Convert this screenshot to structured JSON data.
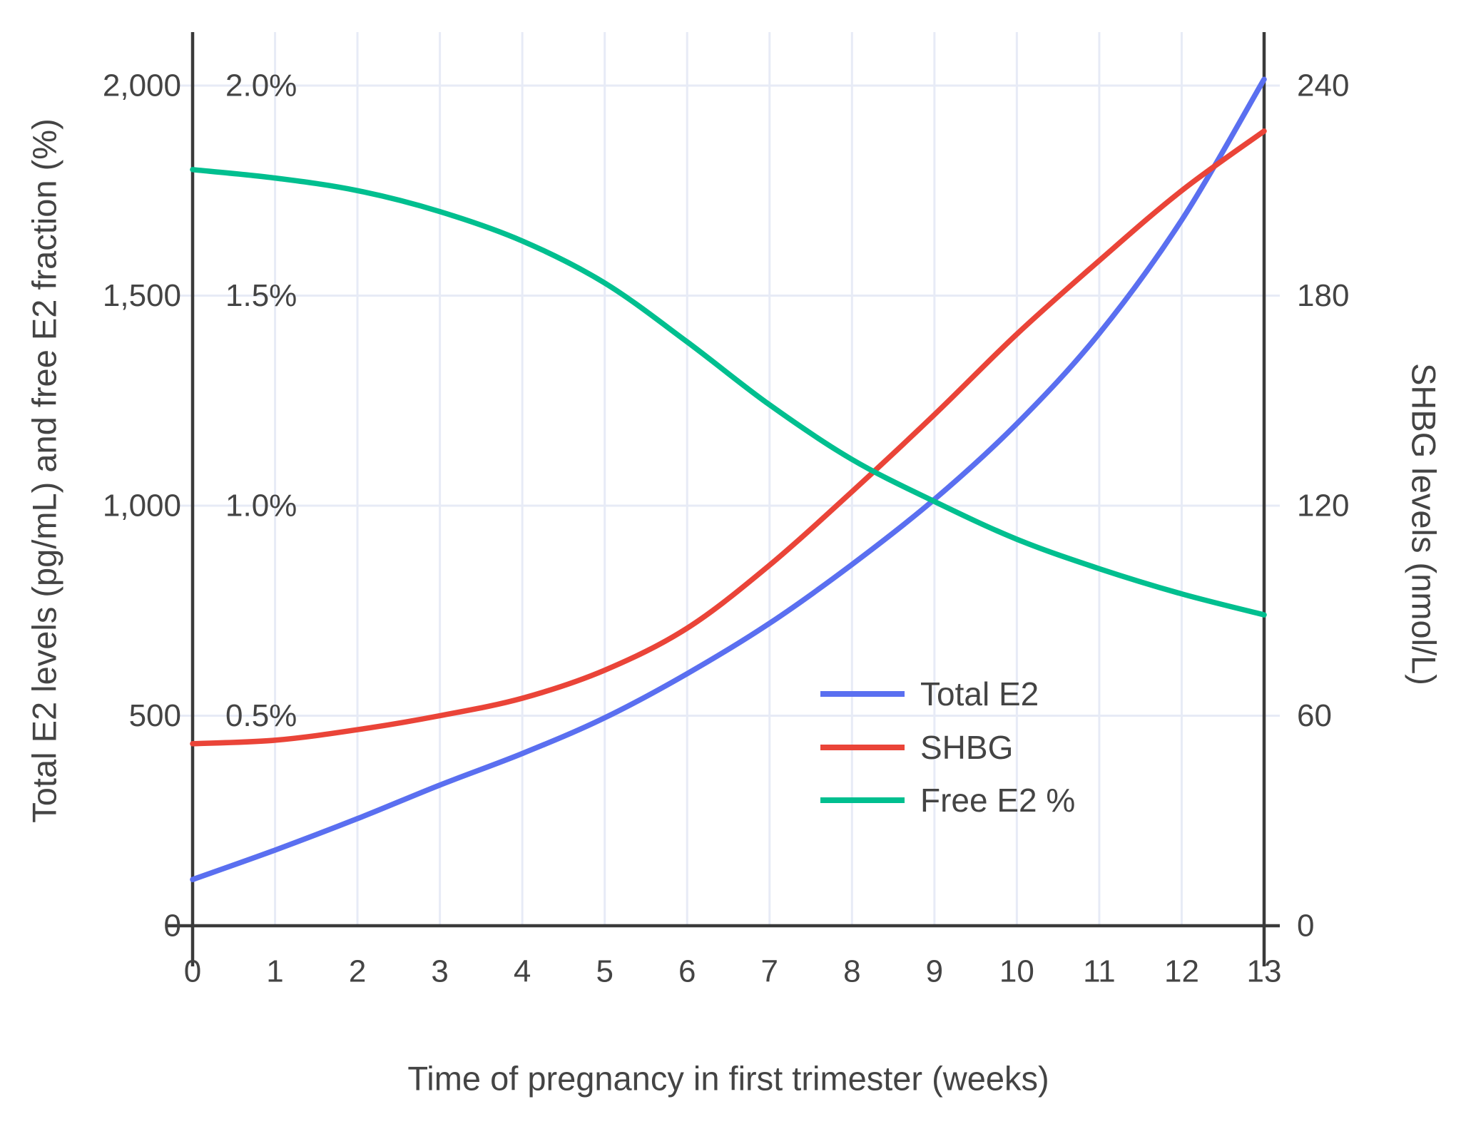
{
  "chart_data": {
    "type": "line",
    "title": "",
    "xlabel": "Time of pregnancy in first trimester (weeks)",
    "ylabel_left": "Total E2 levels (pg/mL) and free E2 fraction (%)",
    "ylabel_right": "SHBG levels (nmol/L)",
    "x": [
      0,
      1,
      2,
      3,
      4,
      5,
      6,
      7,
      8,
      9,
      10,
      11,
      12,
      13
    ],
    "x_axis": {
      "range": [
        0,
        13
      ],
      "ticks": [
        {
          "value": 0,
          "label": "0"
        },
        {
          "value": 1,
          "label": "1"
        },
        {
          "value": 2,
          "label": "2"
        },
        {
          "value": 3,
          "label": "3"
        },
        {
          "value": 4,
          "label": "4"
        },
        {
          "value": 5,
          "label": "5"
        },
        {
          "value": 6,
          "label": "6"
        },
        {
          "value": 7,
          "label": "7"
        },
        {
          "value": 8,
          "label": "8"
        },
        {
          "value": 9,
          "label": "9"
        },
        {
          "value": 10,
          "label": "10"
        },
        {
          "value": 11,
          "label": "11"
        },
        {
          "value": 12,
          "label": "12"
        },
        {
          "value": 13,
          "label": "13"
        }
      ]
    },
    "left_axis": {
      "range": [
        0,
        2000
      ],
      "unit": "pg/mL",
      "ticks": [
        {
          "value": 0,
          "label": "0"
        },
        {
          "value": 500,
          "label": "500"
        },
        {
          "value": 1000,
          "label": "1,000"
        },
        {
          "value": 1500,
          "label": "1,500"
        },
        {
          "value": 2000,
          "label": "2,000"
        }
      ]
    },
    "percent_axis": {
      "range": [
        0,
        2.0
      ],
      "unit": "%",
      "ticks": [
        {
          "value": 0.5,
          "label": "0.5%"
        },
        {
          "value": 1.0,
          "label": "1.0%"
        },
        {
          "value": 1.5,
          "label": "1.5%"
        },
        {
          "value": 2.0,
          "label": "2.0%"
        }
      ]
    },
    "right_axis": {
      "range": [
        0,
        240
      ],
      "unit": "nmol/L",
      "ticks": [
        {
          "value": 0,
          "label": "0"
        },
        {
          "value": 60,
          "label": "60"
        },
        {
          "value": 120,
          "label": "120"
        },
        {
          "value": 180,
          "label": "180"
        },
        {
          "value": 240,
          "label": "240"
        }
      ]
    },
    "series": [
      {
        "name": "Total E2",
        "axis": "left",
        "color": "#5A6FF0",
        "values": [
          110,
          180,
          255,
          335,
          410,
          495,
          600,
          720,
          860,
          1015,
          1195,
          1410,
          1680,
          2015
        ]
      },
      {
        "name": "SHBG",
        "axis": "right",
        "color": "#EA4438",
        "values": [
          52,
          53,
          56,
          60,
          65,
          73,
          85,
          103,
          124,
          146,
          169,
          190,
          210,
          227
        ]
      },
      {
        "name": "Free E2 %",
        "axis": "percent",
        "color": "#00BF8F",
        "values": [
          1.8,
          1.78,
          1.75,
          1.7,
          1.63,
          1.53,
          1.39,
          1.24,
          1.11,
          1.01,
          0.92,
          0.85,
          0.79,
          0.74
        ]
      }
    ],
    "legend": {
      "position": "inside-right-middle",
      "items": [
        "Total E2",
        "SHBG",
        "Free E2 %"
      ]
    },
    "grid": true,
    "colors": {
      "grid": "#E7EBF6",
      "axis": "#3A3A3A",
      "tick_text": "#444444",
      "title_text": "#3D3D3D",
      "background": "#FFFFFF"
    }
  }
}
